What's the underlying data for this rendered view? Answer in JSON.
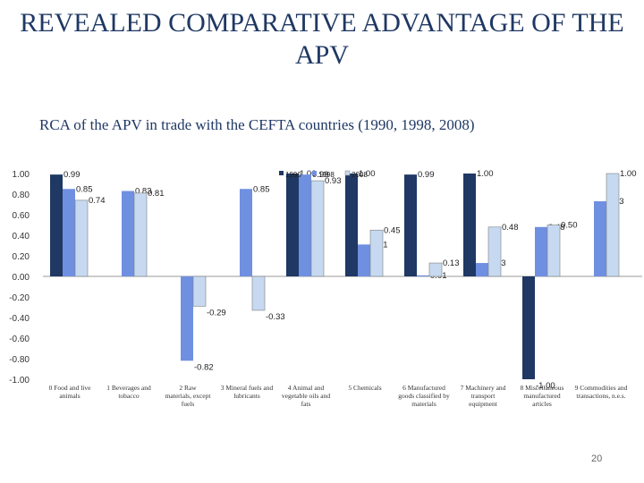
{
  "slide": {
    "title": "REVEALED COMPARATIVE ADVANTAGE OF THE APV",
    "page_number": "20"
  },
  "chart_data": {
    "type": "bar",
    "title": "RCA of the APV in trade with the CEFTA countries (1990, 1998, 2008)",
    "ylim": [
      -1.0,
      1.0
    ],
    "yticks": [
      "1.00",
      "0.80",
      "0.60",
      "0.40",
      "0.20",
      "0.00",
      "-0.20",
      "-0.40",
      "-0.60",
      "-0.80",
      "-1.00"
    ],
    "categories": [
      [
        "0 Food and live",
        "animals"
      ],
      [
        "1 Beverages and",
        "tobacco"
      ],
      [
        "2 Raw",
        "materials, except",
        "fuels"
      ],
      [
        "3 Mineral fuels and",
        "lubricants"
      ],
      [
        "4 Animal and",
        "vegetable oils and",
        "fats"
      ],
      [
        "5 Chemicals"
      ],
      [
        "6 Manufactured",
        "goods classified by",
        "materials"
      ],
      [
        "7 Machinery and",
        "transport",
        "equipment"
      ],
      [
        "8 Miscellaneous",
        "manufactured",
        "articles"
      ],
      [
        "9 Commodities and",
        "transactions, n.e.s."
      ]
    ],
    "series": [
      {
        "name": "1990",
        "color": "#1f3864",
        "values": [
          0.99,
          null,
          null,
          null,
          1.0,
          1.0,
          0.99,
          1.0,
          -1.0,
          null
        ],
        "labels": [
          "0.99",
          "",
          "",
          "",
          "1.00",
          "1.00",
          "0.99",
          "1.00",
          "-1.00",
          ""
        ]
      },
      {
        "name": "1998",
        "color": "#6f8fe0",
        "values": [
          0.85,
          0.83,
          -0.82,
          0.85,
          0.99,
          0.31,
          0.01,
          0.13,
          0.48,
          0.73
        ],
        "labels": [
          "0.85",
          "0.83",
          "-0.82",
          "0.85",
          "0.99",
          "0.31",
          "0.01",
          "0.13",
          "0.48",
          "0.73"
        ]
      },
      {
        "name": "2008",
        "color": "#c6d9f1",
        "values": [
          0.74,
          0.81,
          -0.29,
          -0.33,
          0.93,
          0.45,
          0.13,
          0.48,
          0.5,
          1.0
        ],
        "labels": [
          "0.74",
          "0.81",
          "-0.29",
          "-0.33",
          "0.93",
          "0.45",
          "0.13",
          "0.48",
          "0.50",
          "1.00"
        ]
      }
    ],
    "legend": [
      "1990",
      "1998",
      "2008"
    ]
  }
}
